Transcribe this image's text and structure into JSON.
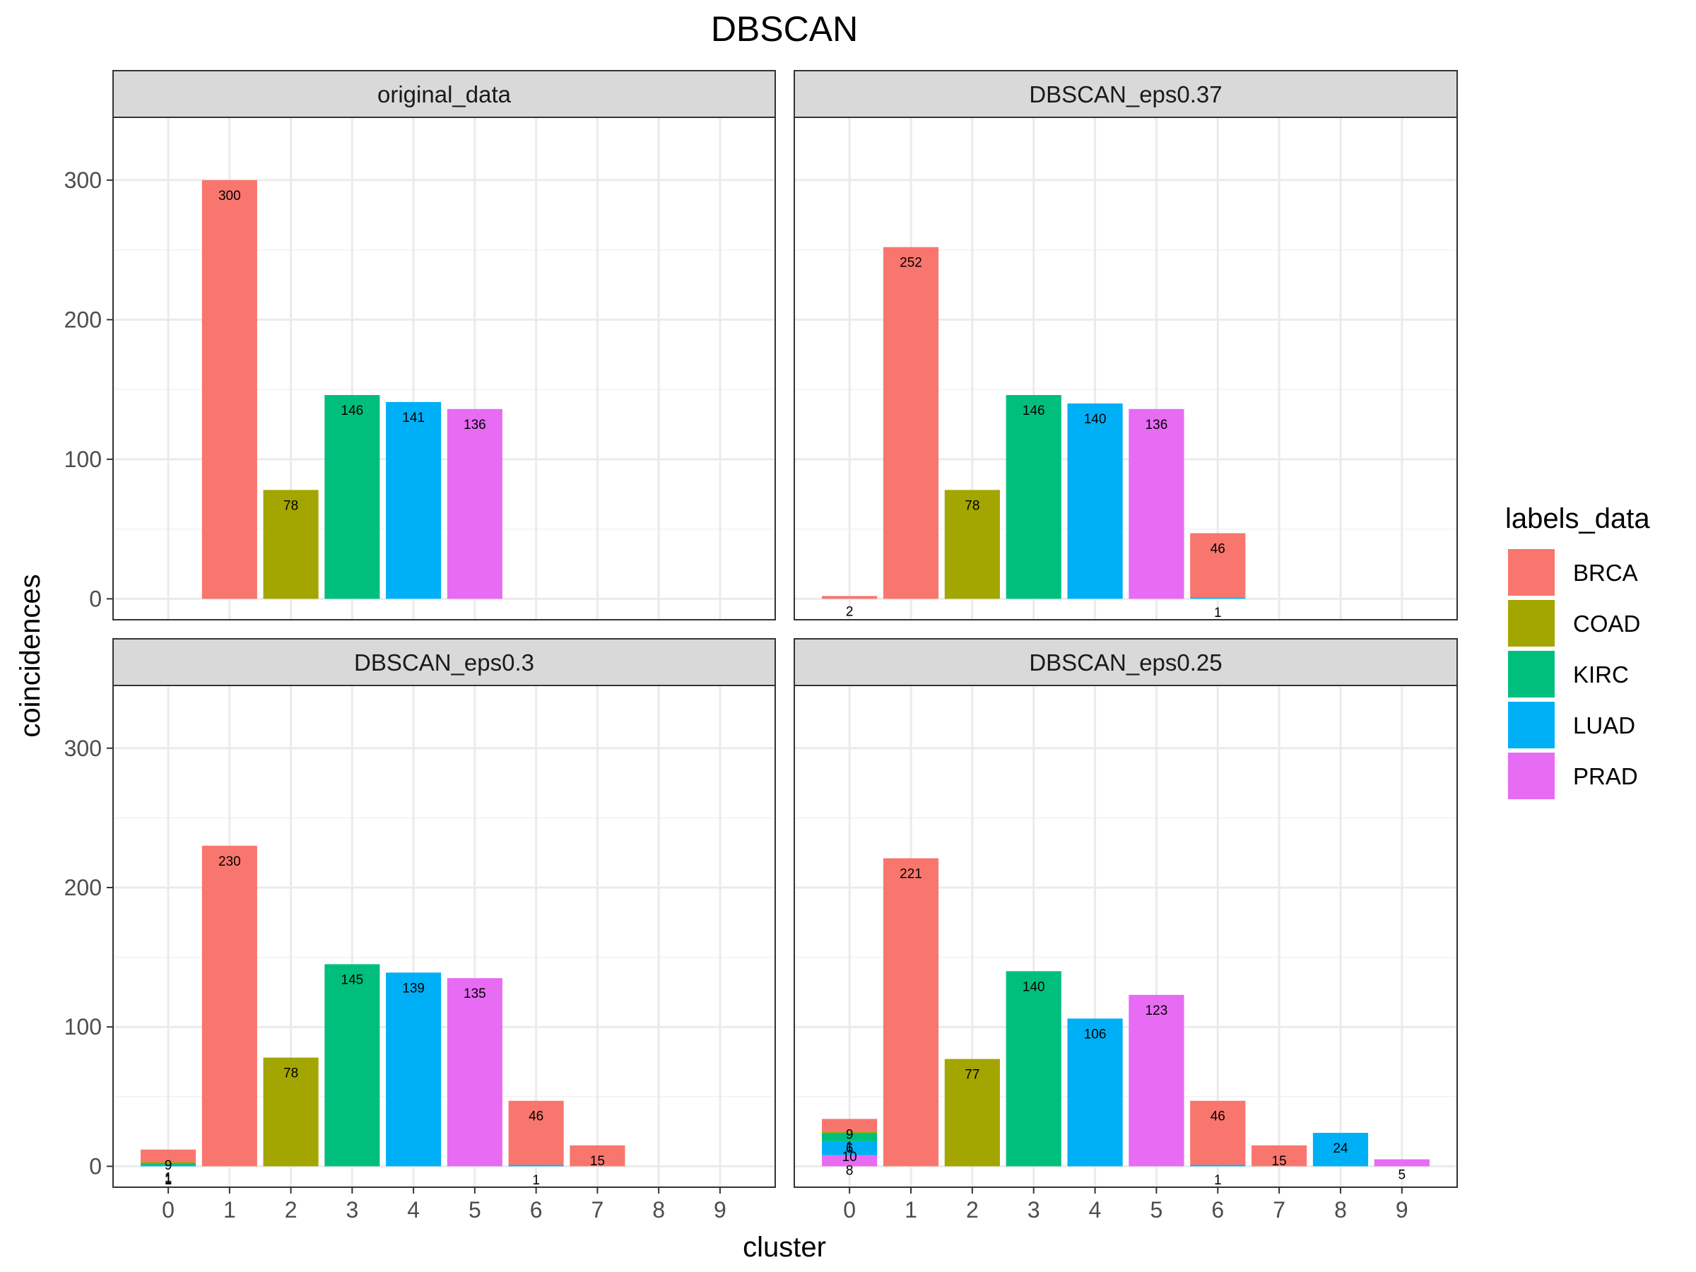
{
  "chart_data": {
    "type": "bar",
    "title": "DBSCAN",
    "xlabel": "cluster",
    "ylabel": "coincidences",
    "ylim": [
      -15,
      345
    ],
    "y_ticks": [
      0,
      100,
      200,
      300
    ],
    "x_ticks": [
      "0",
      "1",
      "2",
      "3",
      "4",
      "5",
      "6",
      "7",
      "8",
      "9"
    ],
    "grid": true,
    "legend": {
      "title": "labels_data",
      "position": "right",
      "items": [
        {
          "name": "BRCA",
          "color": "#F8766D"
        },
        {
          "name": "COAD",
          "color": "#A3A500"
        },
        {
          "name": "KIRC",
          "color": "#00BF7D"
        },
        {
          "name": "LUAD",
          "color": "#00B0F6"
        },
        {
          "name": "PRAD",
          "color": "#E76BF3"
        }
      ]
    },
    "facets": [
      {
        "name": "original_data",
        "bars": [
          {
            "cluster": 1,
            "label": "BRCA",
            "value": 300
          },
          {
            "cluster": 2,
            "label": "COAD",
            "value": 78
          },
          {
            "cluster": 3,
            "label": "KIRC",
            "value": 146
          },
          {
            "cluster": 4,
            "label": "LUAD",
            "value": 141
          },
          {
            "cluster": 5,
            "label": "PRAD",
            "value": 136
          }
        ]
      },
      {
        "name": "DBSCAN_eps0.37",
        "bars": [
          {
            "cluster": 0,
            "label": "BRCA",
            "value": 2
          },
          {
            "cluster": 1,
            "label": "BRCA",
            "value": 252
          },
          {
            "cluster": 2,
            "label": "COAD",
            "value": 78
          },
          {
            "cluster": 3,
            "label": "KIRC",
            "value": 146
          },
          {
            "cluster": 4,
            "label": "LUAD",
            "value": 140
          },
          {
            "cluster": 5,
            "label": "PRAD",
            "value": 136
          },
          {
            "cluster": 6,
            "label": "LUAD",
            "value": 1
          },
          {
            "cluster": 6,
            "label": "BRCA",
            "value": 46
          }
        ]
      },
      {
        "name": "DBSCAN_eps0.3",
        "bars": [
          {
            "cluster": 0,
            "label": "LUAD",
            "value": 1
          },
          {
            "cluster": 0,
            "label": "KIRC",
            "value": 1
          },
          {
            "cluster": 0,
            "label": "COAD",
            "value": 1
          },
          {
            "cluster": 0,
            "label": "BRCA",
            "value": 9
          },
          {
            "cluster": 1,
            "label": "BRCA",
            "value": 230
          },
          {
            "cluster": 2,
            "label": "COAD",
            "value": 78
          },
          {
            "cluster": 3,
            "label": "KIRC",
            "value": 145
          },
          {
            "cluster": 4,
            "label": "LUAD",
            "value": 139
          },
          {
            "cluster": 5,
            "label": "PRAD",
            "value": 135
          },
          {
            "cluster": 6,
            "label": "LUAD",
            "value": 1
          },
          {
            "cluster": 6,
            "label": "BRCA",
            "value": 46
          },
          {
            "cluster": 7,
            "label": "BRCA",
            "value": 15
          }
        ]
      },
      {
        "name": "DBSCAN_eps0.25",
        "bars": [
          {
            "cluster": 0,
            "label": "PRAD",
            "value": 8
          },
          {
            "cluster": 0,
            "label": "LUAD",
            "value": 10
          },
          {
            "cluster": 0,
            "label": "KIRC",
            "value": 6
          },
          {
            "cluster": 0,
            "label": "COAD",
            "value": 1
          },
          {
            "cluster": 0,
            "label": "BRCA",
            "value": 9
          },
          {
            "cluster": 1,
            "label": "BRCA",
            "value": 221
          },
          {
            "cluster": 2,
            "label": "COAD",
            "value": 77
          },
          {
            "cluster": 3,
            "label": "KIRC",
            "value": 140
          },
          {
            "cluster": 4,
            "label": "LUAD",
            "value": 106
          },
          {
            "cluster": 5,
            "label": "PRAD",
            "value": 123
          },
          {
            "cluster": 6,
            "label": "LUAD",
            "value": 1
          },
          {
            "cluster": 6,
            "label": "BRCA",
            "value": 46
          },
          {
            "cluster": 7,
            "label": "BRCA",
            "value": 15
          },
          {
            "cluster": 8,
            "label": "LUAD",
            "value": 24
          },
          {
            "cluster": 9,
            "label": "PRAD",
            "value": 5
          }
        ]
      }
    ]
  }
}
